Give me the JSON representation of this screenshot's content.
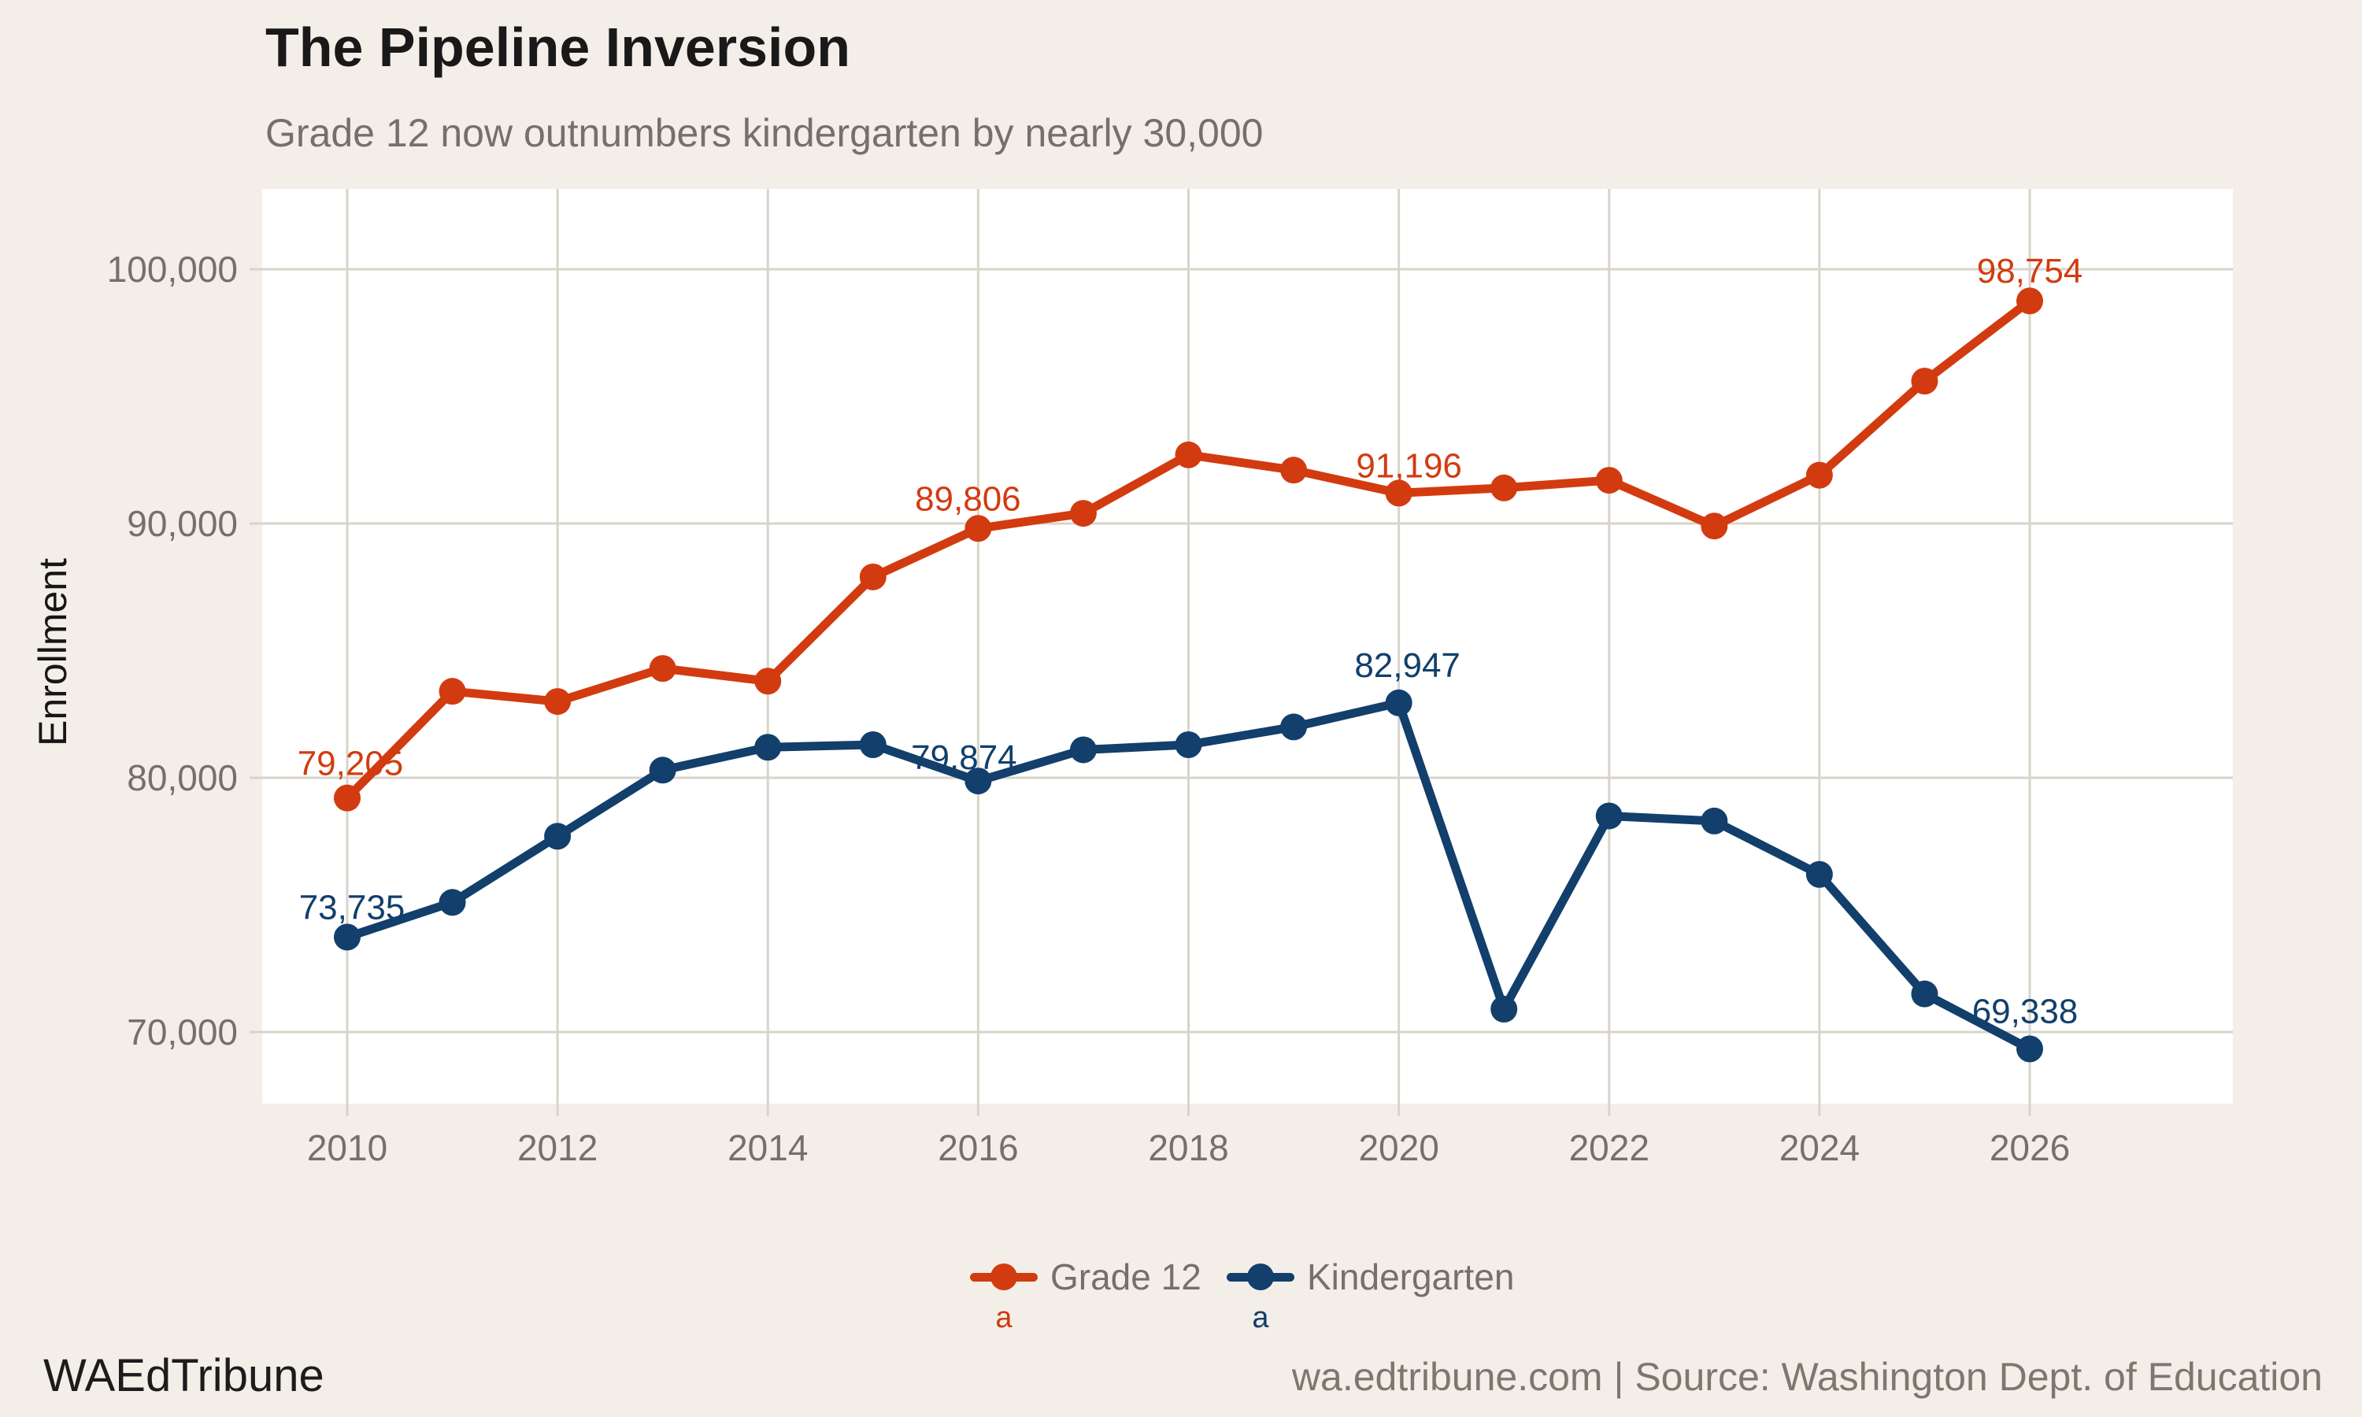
{
  "title": "The Pipeline Inversion",
  "subtitle": "Grade 12 now outnumbers kindergarten by nearly 30,000",
  "y_axis": {
    "label": "Enrollment",
    "ticks": [
      {
        "label": "100,000",
        "value": 100000
      },
      {
        "label": "90,000",
        "value": 90000
      },
      {
        "label": "80,000",
        "value": 80000
      },
      {
        "label": "70,000",
        "value": 70000
      }
    ]
  },
  "x_axis": {
    "ticks": [
      {
        "label": "2010",
        "value": 2010
      },
      {
        "label": "2012",
        "value": 2012
      },
      {
        "label": "2014",
        "value": 2014
      },
      {
        "label": "2016",
        "value": 2016
      },
      {
        "label": "2018",
        "value": 2018
      },
      {
        "label": "2020",
        "value": 2020
      },
      {
        "label": "2022",
        "value": 2022
      },
      {
        "label": "2024",
        "value": 2024
      },
      {
        "label": "2026",
        "value": 2026
      }
    ]
  },
  "legend": [
    {
      "label": "Grade 12",
      "color": "#d23b10",
      "key_char": "a"
    },
    {
      "label": "Kindergarten",
      "color": "#123f6b",
      "key_char": "a"
    }
  ],
  "footer": {
    "brand": "WAEdTribune",
    "source": "wa.edtribune.com | Source: Washington Dept. of Education"
  },
  "colors": {
    "background": "#f3efe8",
    "panel": "#ffffff",
    "gridline": "#d8d4ca",
    "grade12": "#d23b10",
    "kindergarten": "#123f6b",
    "text_gray": "#75706a",
    "title_text": "#191919"
  },
  "chart_data": {
    "type": "line",
    "x": [
      2010,
      2011,
      2012,
      2013,
      2014,
      2015,
      2016,
      2017,
      2018,
      2019,
      2020,
      2021,
      2022,
      2023,
      2024,
      2025,
      2026
    ],
    "series": [
      {
        "name": "Grade 12",
        "color": "#d23b10",
        "values": [
          79205,
          83400,
          83000,
          84300,
          83800,
          87900,
          89806,
          90400,
          92700,
          92100,
          91196,
          91400,
          91700,
          89900,
          91900,
          95600,
          98754
        ],
        "point_labels": [
          {
            "x": 2010,
            "text": "79,205"
          },
          {
            "x": 2016,
            "text": "89,806"
          },
          {
            "x": 2020,
            "text": "91,196"
          },
          {
            "x": 2026,
            "text": "98,754"
          }
        ]
      },
      {
        "name": "Kindergarten",
        "color": "#123f6b",
        "values": [
          73735,
          75100,
          77700,
          80300,
          81200,
          81300,
          79874,
          81100,
          81300,
          82000,
          82947,
          70900,
          78500,
          78300,
          76200,
          71500,
          69338
        ],
        "point_labels": [
          {
            "x": 2010,
            "text": "73,735"
          },
          {
            "x": 2016,
            "text": "79,874"
          },
          {
            "x": 2020,
            "text": "82,947"
          },
          {
            "x": 2026,
            "text": "69,338"
          }
        ]
      }
    ],
    "title": "The Pipeline Inversion",
    "subtitle": "Grade 12 now outnumbers kindergarten by nearly 30,000",
    "xlabel": "",
    "ylabel": "Enrollment",
    "ylim": [
      68000,
      103000
    ],
    "xlim": [
      2009.2,
      2027.9
    ],
    "grid": true,
    "legend_position": "bottom"
  }
}
